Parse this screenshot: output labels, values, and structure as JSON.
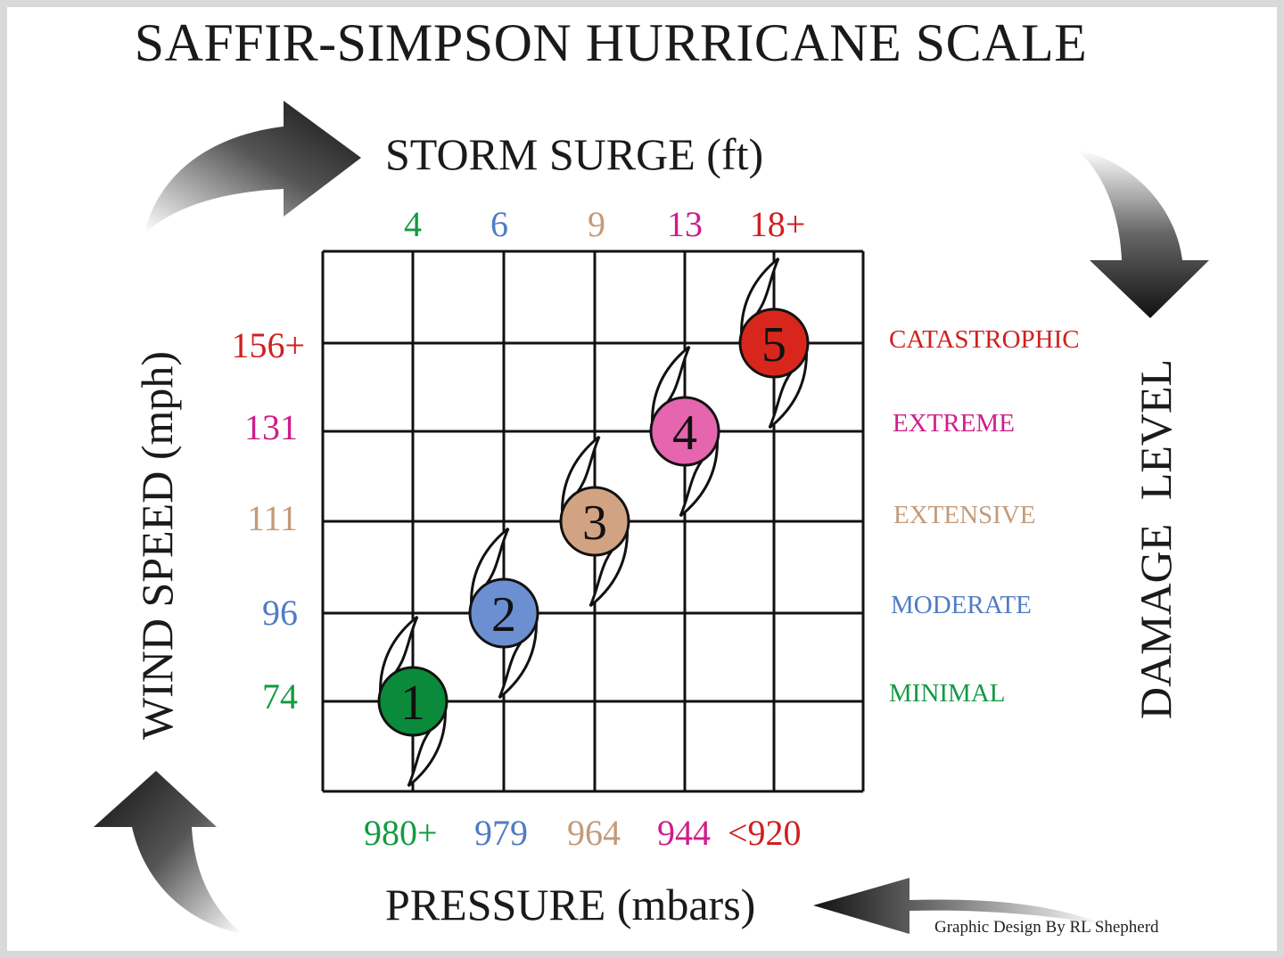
{
  "title": "SAFFIR-SIMPSON HURRICANE SCALE",
  "storm_surge": {
    "title": "STORM SURGE (ft)",
    "values": [
      "4",
      "6",
      "9",
      "13",
      "18+"
    ]
  },
  "wind_speed": {
    "title": "WIND SPEED (mph)",
    "values": [
      "74",
      "96",
      "111",
      "131",
      "156+"
    ]
  },
  "pressure": {
    "title": "PRESSURE (mbars)",
    "values": [
      "980+",
      "979",
      "964",
      "944",
      "<920"
    ]
  },
  "damage_level": {
    "title": "DAMAGE  LEVEL",
    "values": [
      "MINIMAL",
      "MODERATE",
      "EXTENSIVE",
      "EXTREME",
      "CATASTROPHIC"
    ]
  },
  "categories": [
    {
      "number": "1",
      "fill": "#0a8a3a"
    },
    {
      "number": "2",
      "fill": "#6b8fd1"
    },
    {
      "number": "3",
      "fill": "#d2a382"
    },
    {
      "number": "4",
      "fill": "#e565ae"
    },
    {
      "number": "5",
      "fill": "#d9261c"
    }
  ],
  "category_colors": [
    "#139a43",
    "#4f7cc4",
    "#c49a78",
    "#cf1d8a",
    "#d01f1f"
  ],
  "credit": "Graphic Design By RL Shepherd",
  "icons": {
    "cycle_arrows": [
      "arrow-right-icon",
      "arrow-down-icon",
      "arrow-left-icon",
      "arrow-up-icon"
    ],
    "hurricane_symbol": "hurricane-icon"
  }
}
